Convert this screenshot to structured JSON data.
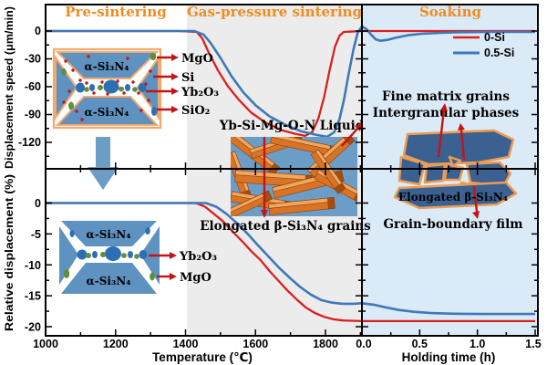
{
  "figure": {
    "phases": [
      {
        "label": "Pre-sintering"
      },
      {
        "label": "Gas-pressure sintering"
      },
      {
        "label": "Soaking"
      }
    ],
    "legend": [
      {
        "label": "0-Si",
        "color": "#d9201f"
      },
      {
        "label": "0.5-Si",
        "color": "#3d79b8"
      }
    ],
    "axes": {
      "top_y_title": "Displacement speed (μm/min)",
      "bottom_y_title": "Relative displacement (%)",
      "x1_title": "Temperature (℃)",
      "x2_title": "Holding time (h)",
      "top_y_ticks": [
        "0",
        "-30",
        "-60",
        "-90",
        "-120"
      ],
      "bottom_y_ticks": [
        "0",
        "-5",
        "-10",
        "-15",
        "-20"
      ],
      "x1_ticks": [
        "1000",
        "1200",
        "1400",
        "1600",
        "1800"
      ],
      "x2_ticks": [
        "0.0",
        "0.5",
        "1.0",
        "1.5"
      ]
    },
    "annotations": {
      "top_inset": {
        "grain_top": "α-Si₃N₄",
        "grain_bottom": "α-Si₃N₄",
        "label_1": "MgO",
        "label_2": "Si",
        "label_3": "Yb₂O₃",
        "label_4": "SiO₂"
      },
      "bottom_inset": {
        "grain_top": "α-Si₃N₄",
        "grain_bottom": "α-Si₃N₄",
        "label_1": "Yb₂O₃",
        "label_2": "MgO"
      },
      "middle_inset": {
        "caption_top": "Yb-Si-Mg-O-N Liquid",
        "caption_bottom": "Elongated β-Si₃N₄ grains"
      },
      "right_inset": {
        "line1": "Fine matrix grains",
        "line2": "Intergranular phases",
        "grain_label": "Elongated β-Si₃N₄",
        "caption": "Grain-boundary film"
      }
    }
  },
  "chart_data": {
    "type": "line",
    "panels": [
      {
        "id": "speed",
        "ylabel": "Displacement speed (μm/min)",
        "ylim": [
          -150,
          10
        ],
        "yticks": [
          0,
          -30,
          -60,
          -90,
          -120
        ]
      },
      {
        "id": "displacement",
        "ylabel": "Relative displacement (%)",
        "ylim": [
          -21.5,
          5.5
        ],
        "yticks": [
          0,
          -5,
          -10,
          -15,
          -20
        ]
      }
    ],
    "x_axes": [
      {
        "id": "temperature",
        "label": "Temperature (℃)",
        "range": [
          1000,
          1904
        ],
        "ticks": [
          1000,
          1200,
          1400,
          1600,
          1800
        ]
      },
      {
        "id": "holding_time",
        "label": "Holding time (h)",
        "range": [
          0,
          1.5
        ],
        "ticks": [
          0.0,
          0.5,
          1.0,
          1.5
        ]
      }
    ],
    "phases": [
      {
        "label": "Pre-sintering",
        "x_range": "1000-1400 ℃",
        "bg": "#ffffff"
      },
      {
        "label": "Gas-pressure sintering",
        "x_range": "1400-1900 ℃",
        "bg": "#ececec"
      },
      {
        "label": "Soaking",
        "x_range": "0-1.5 h",
        "bg": "#dbeaf7"
      }
    ],
    "legend_position": "top-right",
    "series": [
      {
        "id": "speed-0si",
        "name": "0-Si",
        "color": "#d9201f",
        "panel": "speed",
        "temp_points": [
          [
            1000,
            0
          ],
          [
            1380,
            0
          ],
          [
            1432,
            -1
          ],
          [
            1448,
            -8
          ],
          [
            1465,
            -22
          ],
          [
            1492,
            -42
          ],
          [
            1520,
            -59
          ],
          [
            1552,
            -74
          ],
          [
            1588,
            -88
          ],
          [
            1630,
            -99
          ],
          [
            1675,
            -107
          ],
          [
            1715,
            -111
          ],
          [
            1742,
            -113
          ],
          [
            1762,
            -109
          ],
          [
            1780,
            -94
          ],
          [
            1797,
            -70
          ],
          [
            1812,
            -42
          ],
          [
            1827,
            -17
          ],
          [
            1840,
            -5
          ],
          [
            1852,
            -1
          ],
          [
            1904,
            0
          ]
        ],
        "hold_points": [
          [
            0,
            0
          ],
          [
            1.5,
            0
          ]
        ]
      },
      {
        "id": "speed-05si",
        "name": "0.5-Si",
        "color": "#3d79b8",
        "panel": "speed",
        "temp_points": [
          [
            1000,
            0
          ],
          [
            1425,
            0
          ],
          [
            1452,
            -4
          ],
          [
            1472,
            -13
          ],
          [
            1500,
            -29
          ],
          [
            1532,
            -49
          ],
          [
            1565,
            -66
          ],
          [
            1600,
            -80
          ],
          [
            1640,
            -92
          ],
          [
            1685,
            -101
          ],
          [
            1730,
            -108
          ],
          [
            1775,
            -112
          ],
          [
            1805,
            -114
          ],
          [
            1825,
            -109
          ],
          [
            1840,
            -95
          ],
          [
            1853,
            -74
          ],
          [
            1866,
            -47
          ],
          [
            1880,
            -20
          ],
          [
            1892,
            -2
          ],
          [
            1904,
            5
          ]
        ],
        "hold_points": [
          [
            0,
            5
          ],
          [
            0.04,
            2
          ],
          [
            0.08,
            -4
          ],
          [
            0.12,
            -9
          ],
          [
            0.16,
            -10.5
          ],
          [
            0.22,
            -9.5
          ],
          [
            0.3,
            -7
          ],
          [
            0.4,
            -4.5
          ],
          [
            0.52,
            -3
          ],
          [
            0.68,
            -2
          ],
          [
            0.85,
            -1.3
          ],
          [
            1.1,
            -1
          ],
          [
            1.5,
            -1
          ]
        ]
      },
      {
        "id": "disp-0si",
        "name": "0-Si",
        "color": "#d9201f",
        "panel": "displacement",
        "temp_points": [
          [
            1000,
            0
          ],
          [
            1430,
            0
          ],
          [
            1456,
            -0.6
          ],
          [
            1482,
            -1.8
          ],
          [
            1508,
            -3
          ],
          [
            1536,
            -4.7
          ],
          [
            1562,
            -6.2
          ],
          [
            1588,
            -7.8
          ],
          [
            1614,
            -9.2
          ],
          [
            1640,
            -11
          ],
          [
            1666,
            -12.6
          ],
          [
            1692,
            -14.2
          ],
          [
            1718,
            -15.6
          ],
          [
            1744,
            -16.9
          ],
          [
            1770,
            -17.8
          ],
          [
            1796,
            -18.4
          ],
          [
            1822,
            -18.8
          ],
          [
            1850,
            -19
          ],
          [
            1904,
            -19.1
          ]
        ],
        "hold_points": [
          [
            0,
            -19.1
          ],
          [
            1.5,
            -19.1
          ]
        ]
      },
      {
        "id": "disp-05si",
        "name": "0.5-Si",
        "color": "#3d79b8",
        "panel": "displacement",
        "temp_points": [
          [
            1000,
            0
          ],
          [
            1458,
            0
          ],
          [
            1488,
            -0.6
          ],
          [
            1518,
            -1.8
          ],
          [
            1548,
            -3.3
          ],
          [
            1578,
            -5
          ],
          [
            1608,
            -6.9
          ],
          [
            1638,
            -8.7
          ],
          [
            1668,
            -10.5
          ],
          [
            1698,
            -12.1
          ],
          [
            1728,
            -13.6
          ],
          [
            1758,
            -14.8
          ],
          [
            1788,
            -15.7
          ],
          [
            1818,
            -16.1
          ],
          [
            1848,
            -16.3
          ],
          [
            1878,
            -16.3
          ],
          [
            1904,
            -16.2
          ]
        ],
        "hold_points": [
          [
            0,
            -16.2
          ],
          [
            0.1,
            -16.45
          ],
          [
            0.2,
            -16.85
          ],
          [
            0.32,
            -17.3
          ],
          [
            0.45,
            -17.6
          ],
          [
            0.6,
            -17.8
          ],
          [
            0.8,
            -17.9
          ],
          [
            1.05,
            -17.95
          ],
          [
            1.5,
            -17.95
          ]
        ]
      }
    ]
  }
}
